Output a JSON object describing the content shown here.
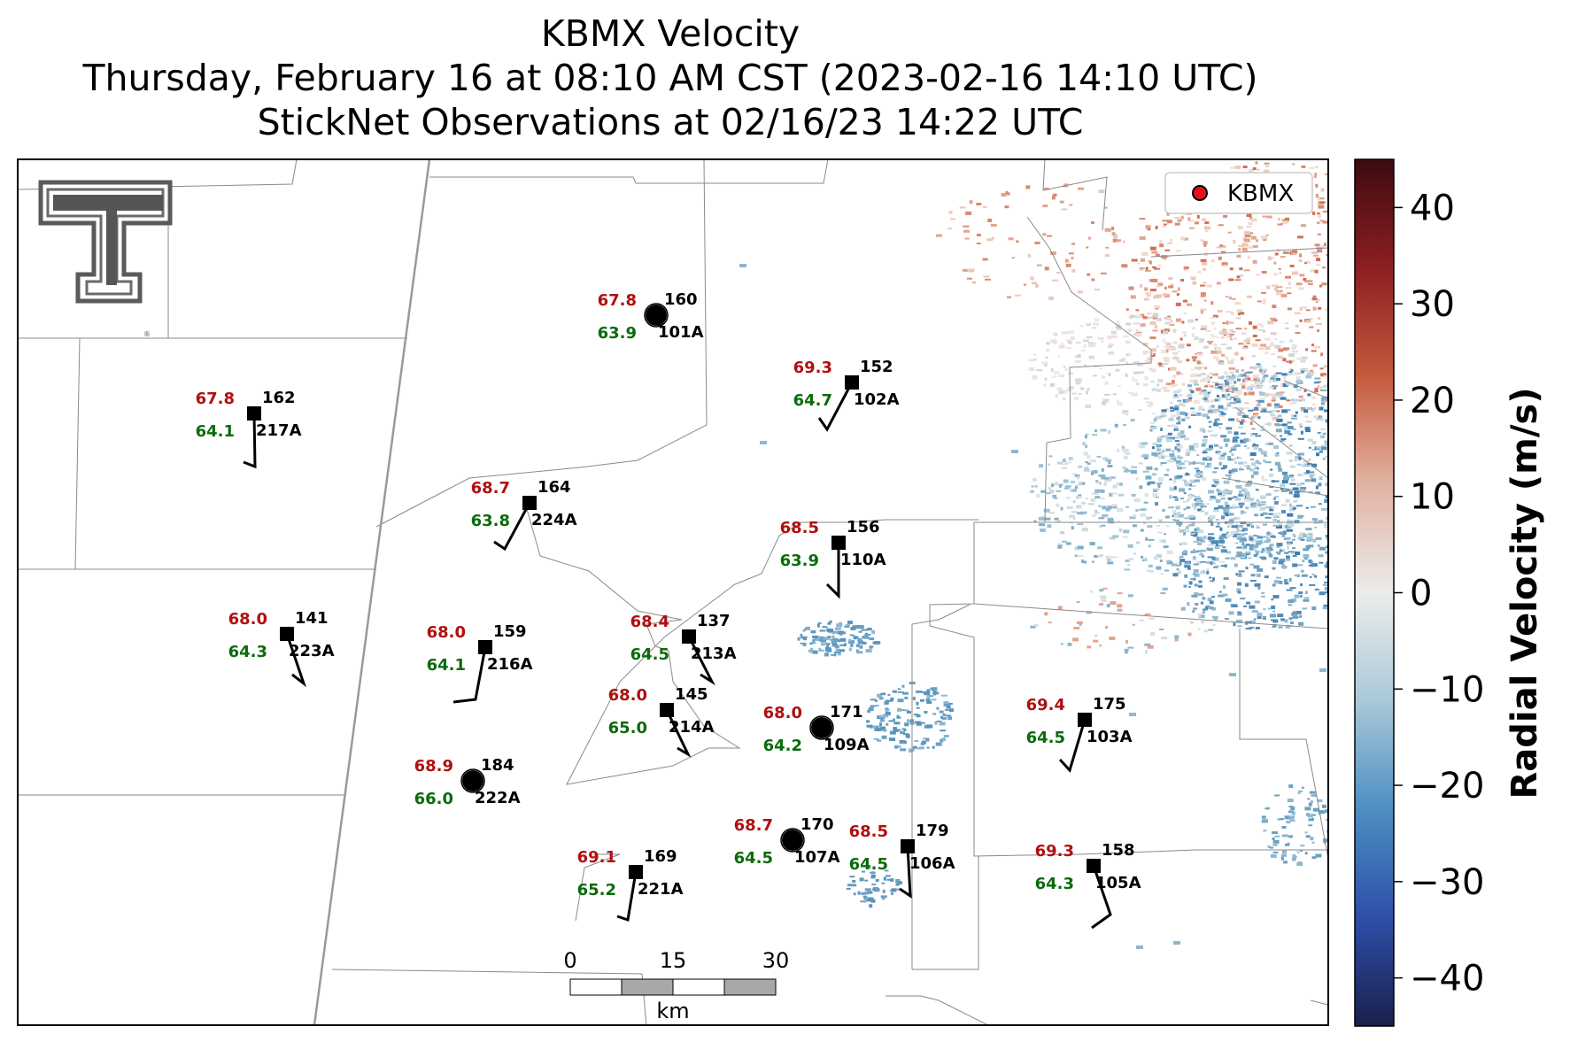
{
  "title": {
    "line1": "KBMX Velocity",
    "line2": "Thursday, February 16 at 08:10 AM CST (2023-02-16 14:10 UTC)",
    "line3": "StickNet Observations at 02/16/23 14:22 UTC"
  },
  "legend": {
    "label": "KBMX",
    "marker_color": "#e8101a"
  },
  "colorbar": {
    "label": "Radial Velocity (m/s)",
    "ticks": [
      "40",
      "30",
      "20",
      "10",
      "0",
      "−10",
      "−20",
      "−30",
      "−40"
    ],
    "range": [
      -45,
      45
    ],
    "colors": [
      "#1a1f4d",
      "#2e4fa8",
      "#4d8ec2",
      "#a9c9d8",
      "#ececec",
      "#e2b3a2",
      "#c45a3c",
      "#8c1f22",
      "#3c0b10"
    ]
  },
  "scale_bar": {
    "ticks": [
      "0",
      "15",
      "30"
    ],
    "unit": "km"
  },
  "logo": {
    "name": "texas-tech-double-t-logo"
  },
  "colors": {
    "temperature": "#b01010",
    "dewpoint": "#0c6b0c",
    "station_id": "#000000"
  },
  "stations": [
    {
      "id": "101A",
      "temp": "67.8",
      "dew": "63.9",
      "num": "160",
      "shape": "circle"
    },
    {
      "id": "102A",
      "temp": "69.3",
      "dew": "64.7",
      "num": "152",
      "shape": "square"
    },
    {
      "id": "217A",
      "temp": "67.8",
      "dew": "64.1",
      "num": "162",
      "shape": "square"
    },
    {
      "id": "224A",
      "temp": "68.7",
      "dew": "63.8",
      "num": "164",
      "shape": "square"
    },
    {
      "id": "110A",
      "temp": "68.5",
      "dew": "63.9",
      "num": "156",
      "shape": "square"
    },
    {
      "id": "223A",
      "temp": "68.0",
      "dew": "64.3",
      "num": "141",
      "shape": "square"
    },
    {
      "id": "216A",
      "temp": "68.0",
      "dew": "64.1",
      "num": "159",
      "shape": "square"
    },
    {
      "id": "213A",
      "temp": "68.4",
      "dew": "64.5",
      "num": "137",
      "shape": "square"
    },
    {
      "id": "214A",
      "temp": "68.0",
      "dew": "65.0",
      "num": "145",
      "shape": "square"
    },
    {
      "id": "109A",
      "temp": "68.0",
      "dew": "64.2",
      "num": "171",
      "shape": "circle"
    },
    {
      "id": "103A",
      "temp": "69.4",
      "dew": "64.5",
      "num": "175",
      "shape": "square"
    },
    {
      "id": "222A",
      "temp": "68.9",
      "dew": "66.0",
      "num": "184",
      "shape": "circle"
    },
    {
      "id": "107A",
      "temp": "68.7",
      "dew": "64.5",
      "num": "170",
      "shape": "circle"
    },
    {
      "id": "106A",
      "temp": "68.5",
      "dew": "64.5",
      "num": "179",
      "shape": "square"
    },
    {
      "id": "221A",
      "temp": "69.1",
      "dew": "65.2",
      "num": "169",
      "shape": "square"
    },
    {
      "id": "105A",
      "temp": "69.3",
      "dew": "64.3",
      "num": "158",
      "shape": "square"
    }
  ]
}
